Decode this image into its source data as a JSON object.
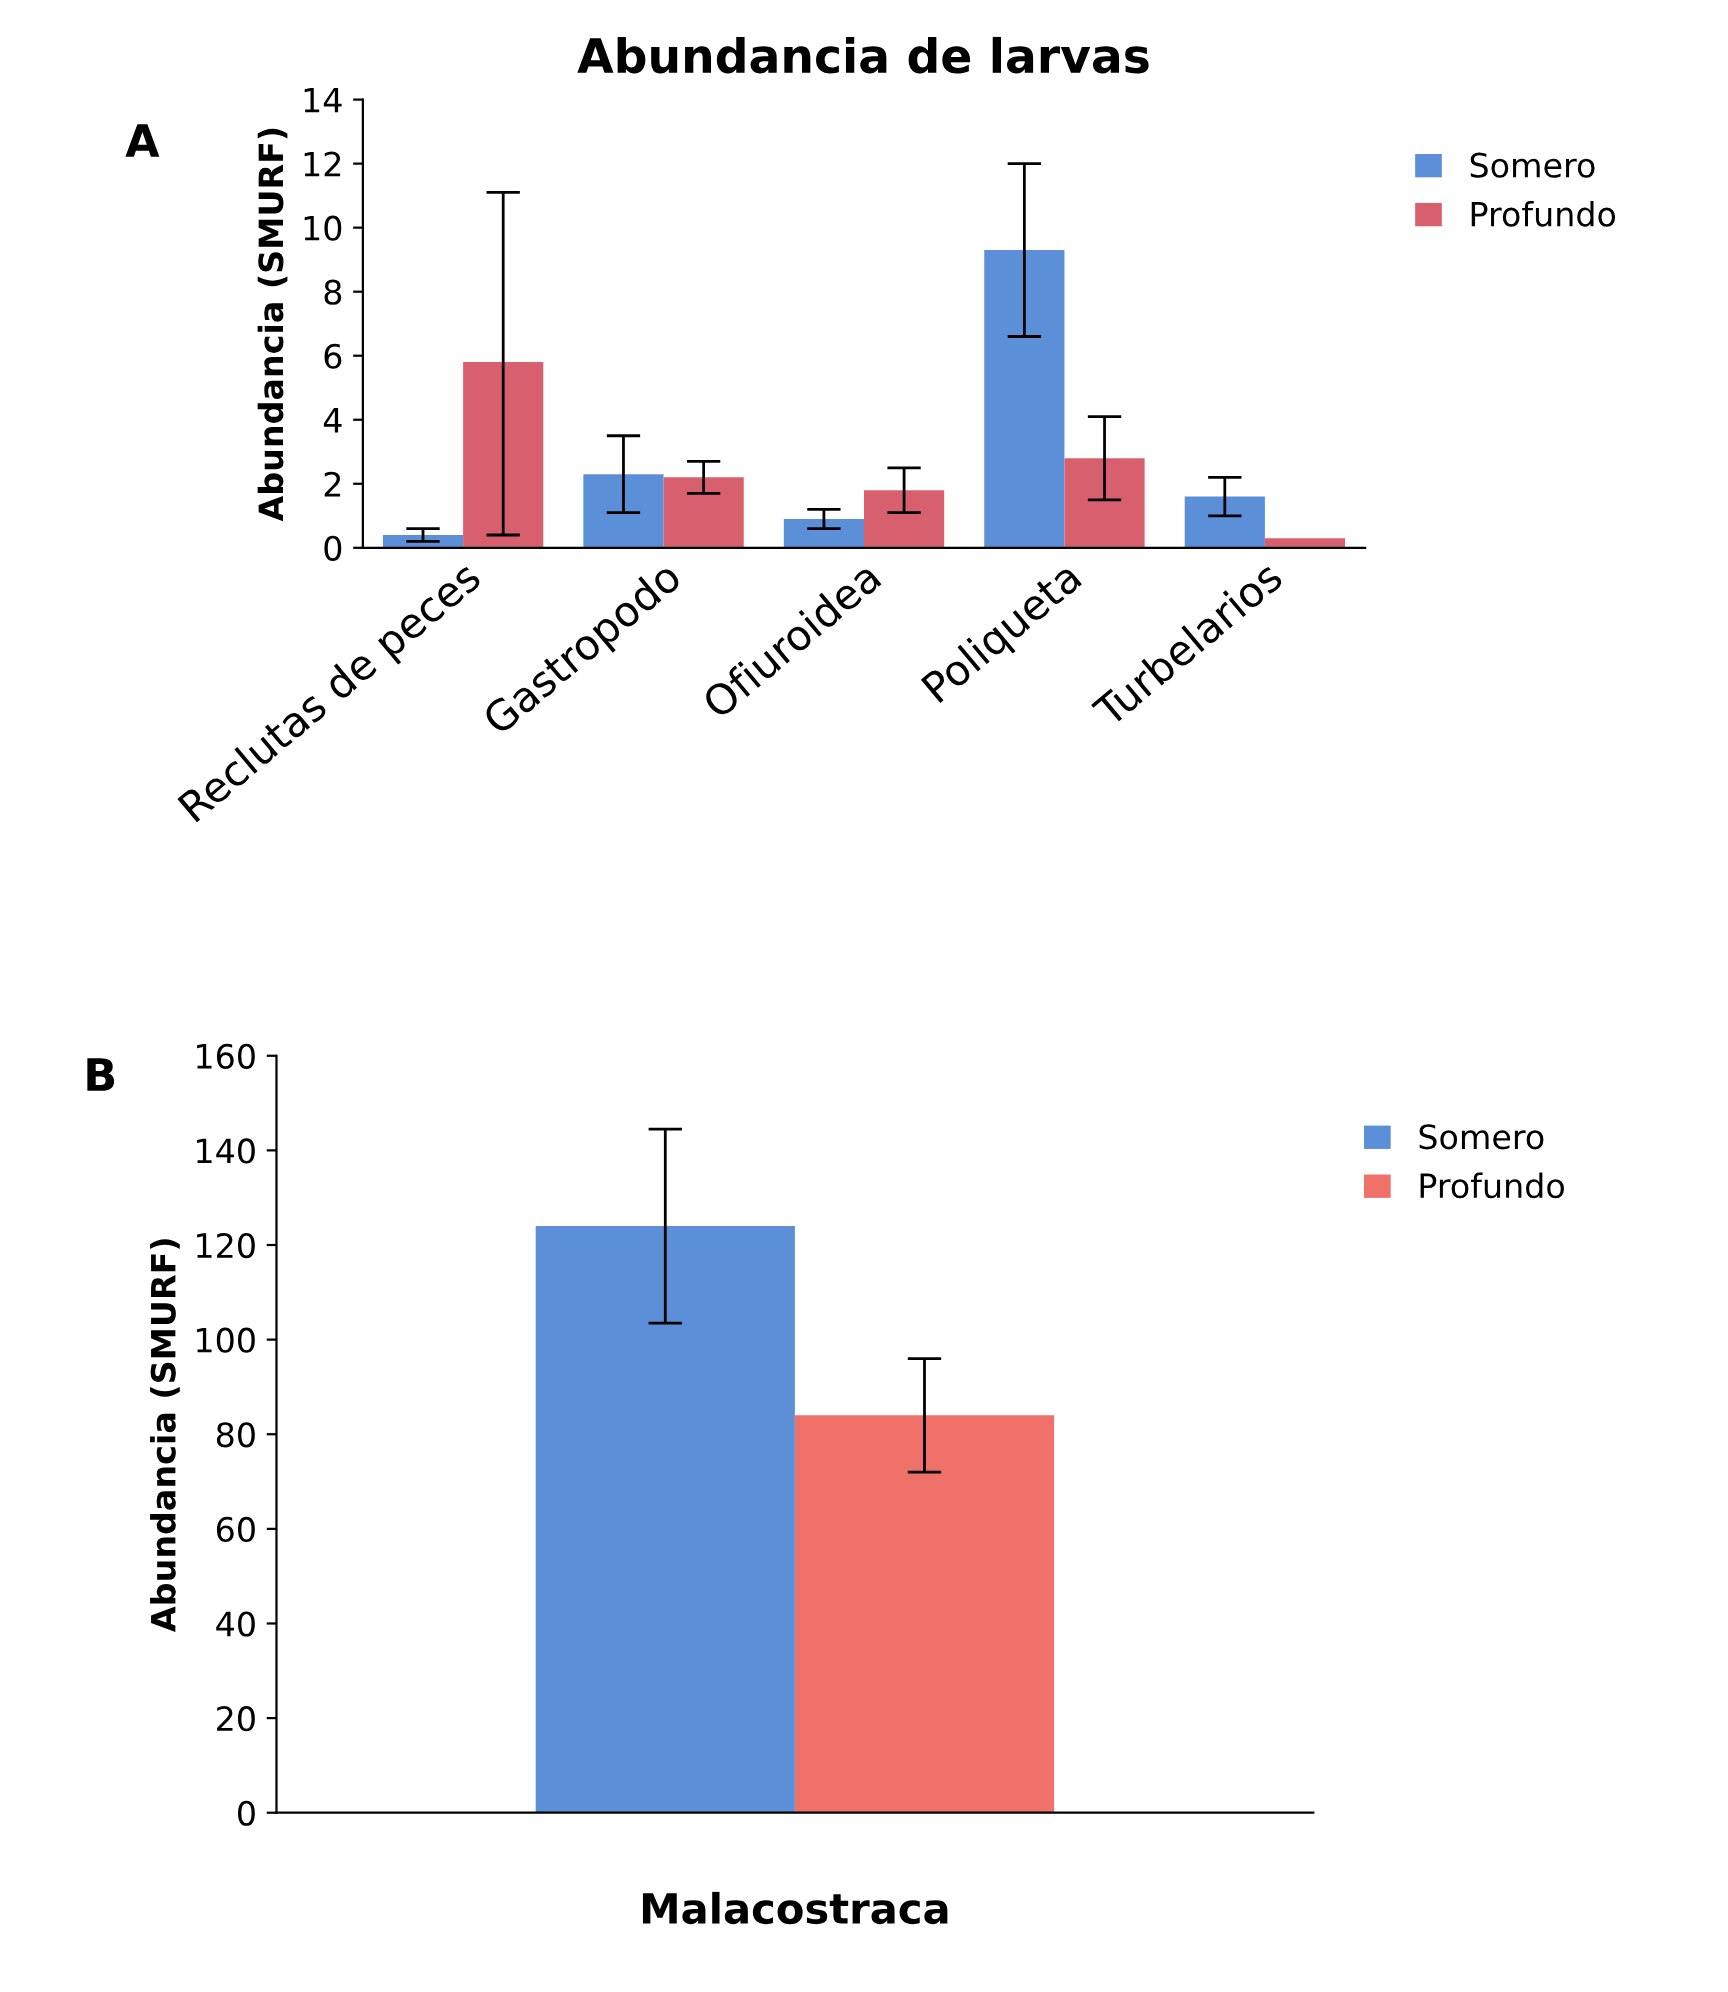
{
  "chart_data": [
    {
      "type": "bar",
      "title": "Abundancia de larvas",
      "ylabel": "Abundancia (SMURF)",
      "annotations": [
        "A"
      ],
      "categories": [
        "Reclutas de peces",
        "Gastropodo",
        "Ofiuroidea",
        "Poliqueta",
        "Turbelarios"
      ],
      "series": [
        {
          "name": "Somero",
          "color": "#5b8fd8",
          "values": [
            0.4,
            2.3,
            0.9,
            9.3,
            1.6
          ],
          "errors": [
            0.2,
            1.2,
            0.3,
            2.7,
            0.6
          ]
        },
        {
          "name": "Profundo",
          "color": "#d8606e",
          "values": [
            5.8,
            2.2,
            1.8,
            2.8,
            0.3
          ],
          "errors": [
            [
              0.4,
              11.1
            ],
            0.5,
            0.7,
            1.3,
            null
          ]
        }
      ],
      "ylim": [
        0,
        14
      ],
      "yticks": [
        0,
        2,
        4,
        6,
        8,
        10,
        12,
        14
      ],
      "grid": false,
      "legend": "top right"
    },
    {
      "type": "bar",
      "xlabel": "Malacostraca",
      "ylabel": "Abundancia (SMURF)",
      "annotations": [
        "B"
      ],
      "categories": [
        null
      ],
      "series": [
        {
          "name": "Somero",
          "color": "#5b8fd8",
          "values": [
            124
          ],
          "errors": [
            20.5
          ]
        },
        {
          "name": "Profundo",
          "color": "#f0706a",
          "values": [
            84
          ],
          "errors": [
            12
          ]
        }
      ],
      "ylim": [
        0,
        160
      ],
      "yticks": [
        0,
        20,
        40,
        60,
        80,
        100,
        120,
        140,
        160
      ],
      "grid": false,
      "legend": "top right"
    }
  ]
}
